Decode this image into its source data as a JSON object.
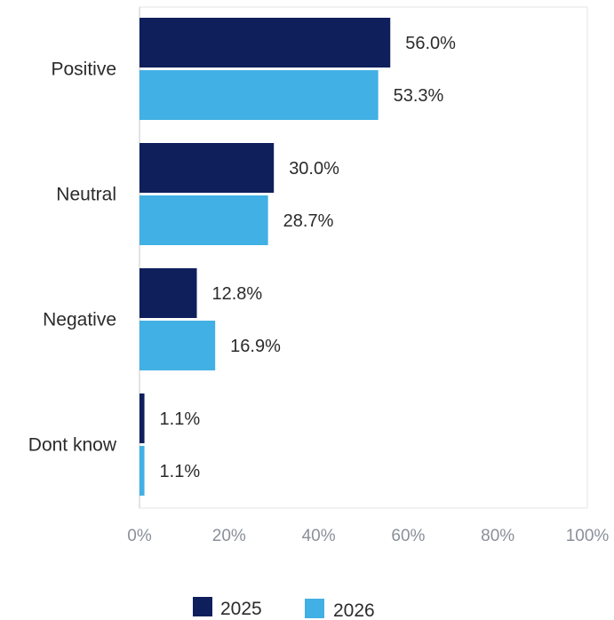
{
  "chart_data": {
    "type": "bar",
    "orientation": "horizontal",
    "categories": [
      "Positive",
      "Neutral",
      "Negative",
      "Dont know"
    ],
    "series": [
      {
        "name": "2025",
        "values": [
          56.0,
          30.0,
          12.8,
          1.1
        ],
        "labels": [
          "56.0%",
          "30.0%",
          "12.8%",
          "1.1%"
        ],
        "color": "#0f1f5c"
      },
      {
        "name": "2026",
        "values": [
          53.3,
          28.7,
          16.9,
          1.1
        ],
        "labels": [
          "53.3%",
          "28.7%",
          "16.9%",
          "1.1%"
        ],
        "color": "#41b0e4"
      }
    ],
    "xlim": [
      0,
      100
    ],
    "xticks": [
      "0%",
      "20%",
      "40%",
      "60%",
      "80%",
      "100%"
    ],
    "legend_position": "bottom",
    "grid": false
  }
}
